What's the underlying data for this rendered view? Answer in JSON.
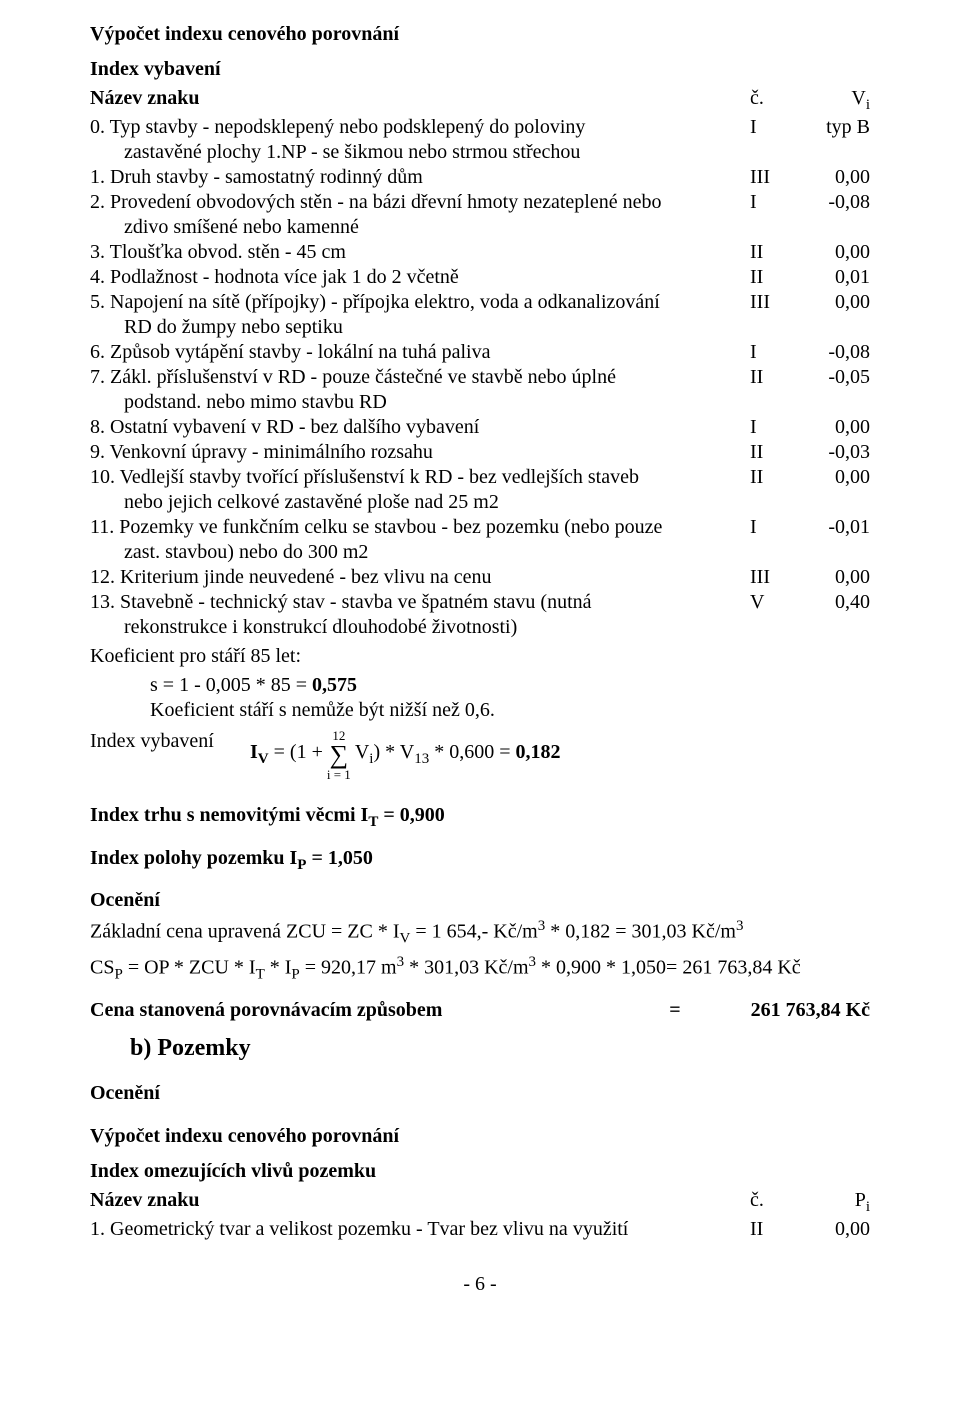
{
  "doc": {
    "title": "Výpočet indexu cenového porovnání",
    "index_vybaveni": "Index vybavení",
    "header": {
      "name": "Název znaku",
      "c": "č.",
      "v_html": "V<sub>i</sub>"
    },
    "items": [
      {
        "num": "0.",
        "text": "Typ stavby - nepodsklepený nebo podsklepený do poloviny",
        "cont": "zastavěné plochy 1.NP - se šikmou nebo strmou střechou",
        "c": "I",
        "v": "typ B"
      },
      {
        "num": "1.",
        "text": "Druh stavby - samostatný rodinný dům",
        "c": "III",
        "v": "0,00"
      },
      {
        "num": "2.",
        "text": "Provedení obvodových stěn - na bázi dřevní hmoty nezateplené nebo",
        "cont": "zdivo smíšené nebo kamenné",
        "c": "I",
        "v": "-0,08"
      },
      {
        "num": "3.",
        "text": "Tloušťka obvod. stěn - 45 cm",
        "c": "II",
        "v": "0,00"
      },
      {
        "num": "4.",
        "text": "Podlažnost - hodnota více jak 1 do 2 včetně",
        "c": "II",
        "v": "0,01"
      },
      {
        "num": "5.",
        "text": "Napojení na sítě (přípojky) - přípojka elektro, voda a odkanalizování",
        "cont": "RD do žumpy nebo septiku",
        "c": "III",
        "v": "0,00"
      },
      {
        "num": "6.",
        "text": "Způsob vytápění stavby - lokální na tuhá paliva",
        "c": "I",
        "v": "-0,08"
      },
      {
        "num": "7.",
        "text": "Zákl. příslušenství v RD - pouze částečné ve stavbě nebo úplné",
        "cont": "podstand. nebo mimo stavbu RD",
        "c": "II",
        "v": "-0,05"
      },
      {
        "num": "8.",
        "text": "Ostatní vybavení v RD - bez dalšího vybavení",
        "c": "I",
        "v": "0,00"
      },
      {
        "num": "9.",
        "text": "Venkovní úpravy - minimálního rozsahu",
        "c": "II",
        "v": "-0,03"
      },
      {
        "num": "10.",
        "text": "Vedlejší stavby tvořící příslušenství k RD - bez vedlejších staveb",
        "cont": "nebo jejich celkové zastavěné ploše nad 25 m2",
        "c": "II",
        "v": "0,00"
      },
      {
        "num": "11.",
        "text": "Pozemky ve funkčním celku se stavbou - bez pozemku (nebo pouze",
        "cont": "zast. stavbou) nebo do 300 m2",
        "c": "I",
        "v": "-0,01"
      },
      {
        "num": "12.",
        "text": "Kriterium jinde neuvedené - bez vlivu na cenu",
        "c": "III",
        "v": "0,00"
      },
      {
        "num": "13.",
        "text": "Stavebně - technický stav - stavba ve špatném stavu (nutná",
        "cont": "rekonstrukce i konstrukcí dlouhodobé životnosti)",
        "c": "V",
        "v": "0,40"
      }
    ],
    "coef_age_label": "Koeficient pro stáří 85 let:",
    "coef_age_formula_pre": "s = 1 - 0,005 * 85 = ",
    "coef_age_formula_val": "0,575",
    "coef_min": "Koeficient stáří s nemůže být nižší než 0,6.",
    "iv_label": "Index vybavení",
    "iv_formula_pre_html": "<b>I<sub>V</sub></b> = (1 +",
    "sigma_top": "12",
    "sigma_bot": "i = 1",
    "iv_formula_post_html": "V<sub>i</sub>) * V<sub>13</sub> * 0,600 = <b>0,182</b>",
    "it_html": "Index trhu s nemovitými věcmi I<sub>T</sub> = 0,900",
    "ip_html": "Index polohy pozemku I<sub>P</sub> = 1,050",
    "oceneni": "Ocenění",
    "oceneni_lines_html": [
      "Základní cena upravená ZCU = ZC * I<sub>V</sub> = 1 654,- Kč/m<sup>3</sup> * 0,182 = 301,03 Kč/m<sup>3</sup>",
      "CS<sub>P</sub> = OP * ZCU * I<sub>T</sub> * I<sub>P</sub> = 920,17 m<sup>3</sup> * 301,03 Kč/m<sup>3</sup> * 0,900 * 1,050= 261 763,84 Kč"
    ],
    "result_label": "Cena stanovená porovnávacím způsobem",
    "result_eq": "=",
    "result_val": "261 763,84 Kč",
    "pozemky": "b) Pozemky",
    "title2": "Výpočet indexu cenového porovnání",
    "index_omez": "Index omezujících vlivů pozemku",
    "header2": {
      "name": "Název znaku",
      "c": "č.",
      "v_html": "P<sub>i</sub>"
    },
    "items2": [
      {
        "num": "1.",
        "text": "Geometrický tvar a velikost pozemku - Tvar bez vlivu na využití",
        "c": "II",
        "v": "0,00"
      }
    ],
    "page_num": "- 6 -"
  }
}
